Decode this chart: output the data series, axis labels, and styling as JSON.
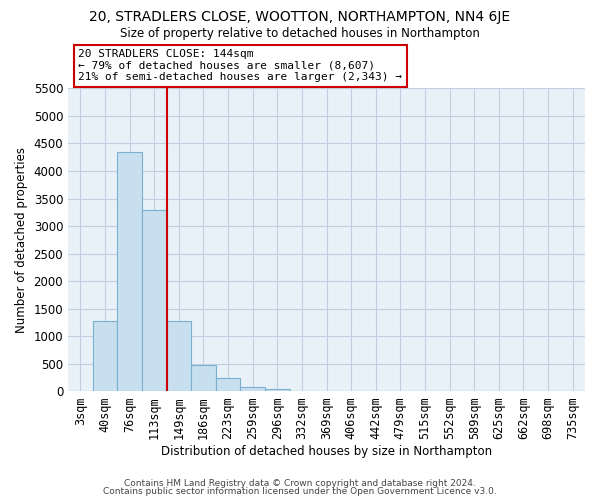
{
  "title": "20, STRADLERS CLOSE, WOOTTON, NORTHAMPTON, NN4 6JE",
  "subtitle": "Size of property relative to detached houses in Northampton",
  "xlabel": "Distribution of detached houses by size in Northampton",
  "ylabel": "Number of detached properties",
  "bar_color": "#c8dff0",
  "bar_edge_color": "#7aafd0",
  "highlight_line_color": "#cc0000",
  "categories": [
    "3sqm",
    "40sqm",
    "76sqm",
    "113sqm",
    "149sqm",
    "186sqm",
    "223sqm",
    "259sqm",
    "296sqm",
    "332sqm",
    "369sqm",
    "406sqm",
    "442sqm",
    "479sqm",
    "515sqm",
    "552sqm",
    "589sqm",
    "625sqm",
    "662sqm",
    "698sqm",
    "735sqm"
  ],
  "values": [
    0,
    1270,
    4350,
    3300,
    1270,
    480,
    240,
    75,
    40,
    0,
    0,
    0,
    0,
    0,
    0,
    0,
    0,
    0,
    0,
    0,
    0
  ],
  "ylim": [
    0,
    5500
  ],
  "yticks": [
    0,
    500,
    1000,
    1500,
    2000,
    2500,
    3000,
    3500,
    4000,
    4500,
    5000,
    5500
  ],
  "red_line_x": 3.5,
  "annotation_title": "20 STRADLERS CLOSE: 144sqm",
  "annotation_line1": "← 79% of detached houses are smaller (8,607)",
  "annotation_line2": "21% of semi-detached houses are larger (2,343) →",
  "footer_line1": "Contains HM Land Registry data © Crown copyright and database right 2024.",
  "footer_line2": "Contains public sector information licensed under the Open Government Licence v3.0.",
  "background_color": "#ffffff",
  "plot_bg_color": "#e8f0f8",
  "grid_color": "#c0d0e0"
}
